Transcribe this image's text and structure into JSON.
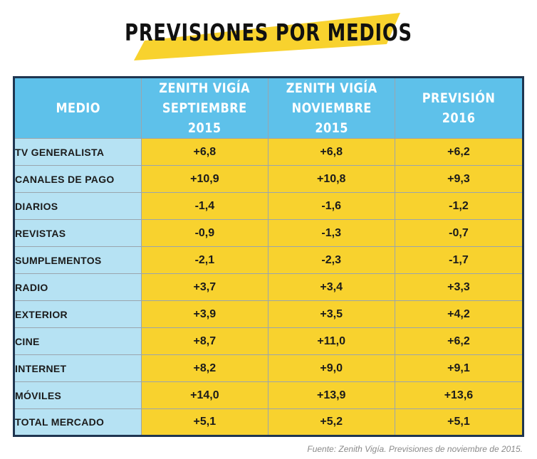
{
  "title": "PREVISIONES POR MEDIOS",
  "source": "Fuente: Zenith Vigía. Previsiones de noviembre de 2015.",
  "colors": {
    "accent_band": "#f8d22e",
    "header_bg": "#5ec1ea",
    "label_bg": "#b6e2f3",
    "value_bg": "#f8d22e",
    "border": "#1f3550"
  },
  "chart_data": {
    "type": "table",
    "columns": [
      {
        "lines": [
          "MEDIO"
        ]
      },
      {
        "lines": [
          "ZENITH VIGÍA",
          "SEPTIEMBRE 2015"
        ]
      },
      {
        "lines": [
          "ZENITH VIGÍA",
          "NOVIEMBRE 2015"
        ]
      },
      {
        "lines": [
          "PREVISIÓN 2016"
        ]
      }
    ],
    "rows": [
      {
        "medio": "TV GENERALISTA",
        "values": [
          "+6,8",
          "+6,8",
          "+6,2"
        ]
      },
      {
        "medio": "CANALES DE PAGO",
        "values": [
          "+10,9",
          "+10,8",
          "+9,3"
        ]
      },
      {
        "medio": "DIARIOS",
        "values": [
          "-1,4",
          "-1,6",
          "-1,2"
        ]
      },
      {
        "medio": "REVISTAS",
        "values": [
          "-0,9",
          "-1,3",
          "-0,7"
        ]
      },
      {
        "medio": "SUMPLEMENTOS",
        "values": [
          "-2,1",
          "-2,3",
          "-1,7"
        ]
      },
      {
        "medio": "RADIO",
        "values": [
          "+3,7",
          "+3,4",
          "+3,3"
        ]
      },
      {
        "medio": "EXTERIOR",
        "values": [
          "+3,9",
          "+3,5",
          "+4,2"
        ]
      },
      {
        "medio": "CINE",
        "values": [
          "+8,7",
          "+11,0",
          "+6,2"
        ]
      },
      {
        "medio": "INTERNET",
        "values": [
          "+8,2",
          "+9,0",
          "+9,1"
        ]
      },
      {
        "medio": "MÓVILES",
        "values": [
          "+14,0",
          "+13,9",
          "+13,6"
        ]
      },
      {
        "medio": "TOTAL MERCADO",
        "values": [
          "+5,1",
          "+5,2",
          "+5,1"
        ]
      }
    ]
  }
}
